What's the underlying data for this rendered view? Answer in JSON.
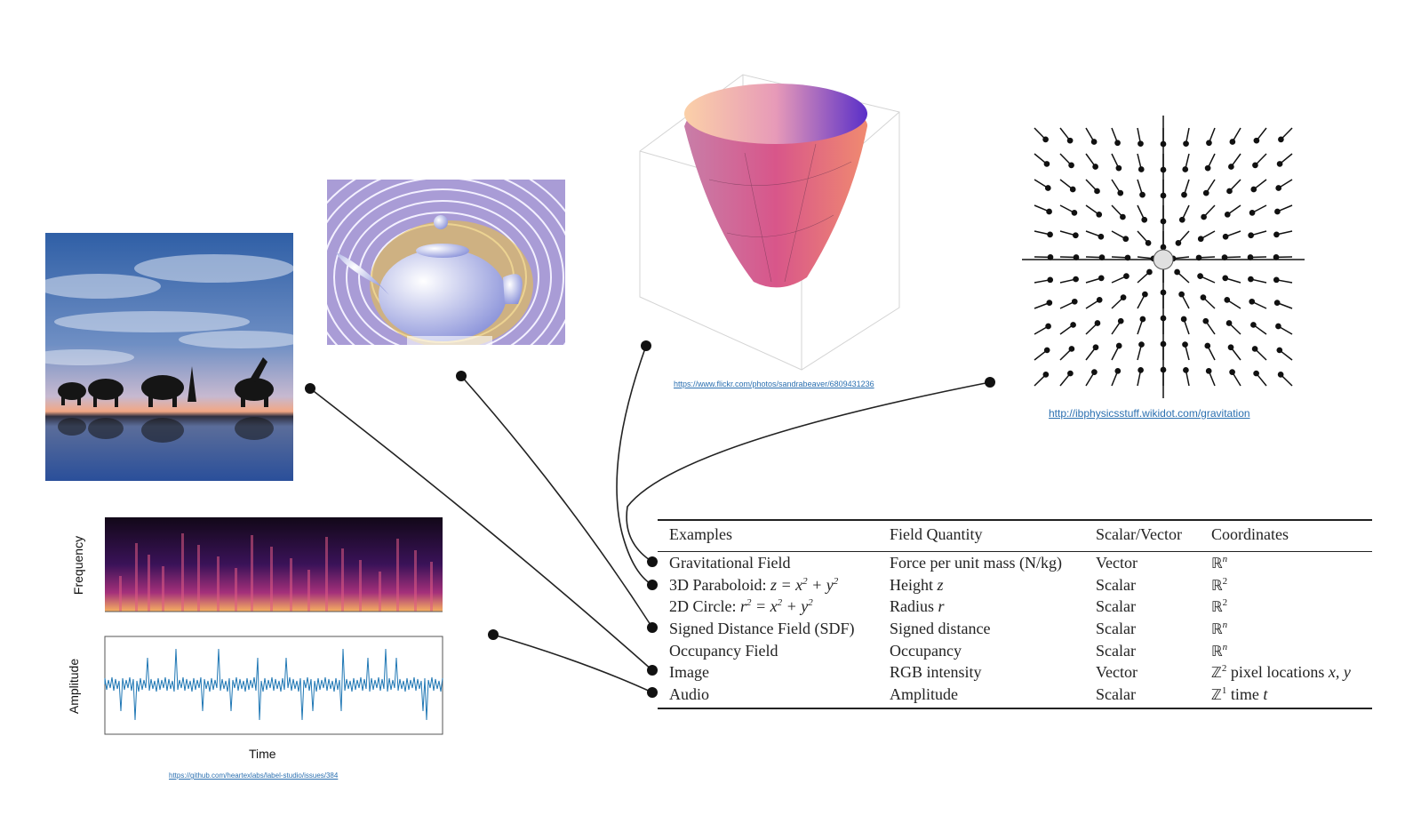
{
  "links": {
    "paraboloid": "https://www.flickr.com/photos/sandrabeaver/6809431236",
    "gravitation": "http://ibphysicsstuff.wikidot.com/gravitation",
    "audio": "https://github.com/heartexlabs/label-studio/issues/384"
  },
  "audio_plot": {
    "ylabel_spec": "Frequency",
    "ylabel_wave": "Amplitude",
    "xlabel": "Time"
  },
  "table": {
    "headers": [
      "Examples",
      "Field Quantity",
      "Scalar/Vector",
      "Coordinates"
    ],
    "rows": [
      {
        "example": "Gravitational Field",
        "quantity": "Force per unit mass (N/kg)",
        "type": "Vector",
        "coords_set": "ℝ",
        "coords_sup": "n",
        "coords_extra": ""
      },
      {
        "example": "3D Paraboloid: ",
        "example_math": "z = x",
        "example_math2": " + y",
        "quantity": "Height ",
        "quantity_math": "z",
        "type": "Scalar",
        "coords_set": "ℝ",
        "coords_sup": "2",
        "coords_extra": ""
      },
      {
        "example": "2D Circle: ",
        "example_math": "r",
        "example_math2": " = x",
        "example_math3": " + y",
        "quantity": "Radius ",
        "quantity_math": "r",
        "type": "Scalar",
        "coords_set": "ℝ",
        "coords_sup": "2",
        "coords_extra": ""
      },
      {
        "example": "Signed Distance Field (SDF)",
        "quantity": "Signed distance",
        "type": "Scalar",
        "coords_set": "ℝ",
        "coords_sup": "n",
        "coords_extra": ""
      },
      {
        "example": "Occupancy Field",
        "quantity": "Occupancy",
        "type": "Scalar",
        "coords_set": "ℝ",
        "coords_sup": "n",
        "coords_extra": ""
      },
      {
        "example": "Image",
        "quantity": "RGB intensity",
        "type": "Vector",
        "coords_set": "ℤ",
        "coords_sup": "2",
        "coords_extra": " pixel locations ",
        "coords_math": "x, y"
      },
      {
        "example": "Audio",
        "quantity": "Amplitude",
        "type": "Scalar",
        "coords_set": "ℤ",
        "coords_sup": "1",
        "coords_extra": " time ",
        "coords_math": "t"
      }
    ]
  }
}
